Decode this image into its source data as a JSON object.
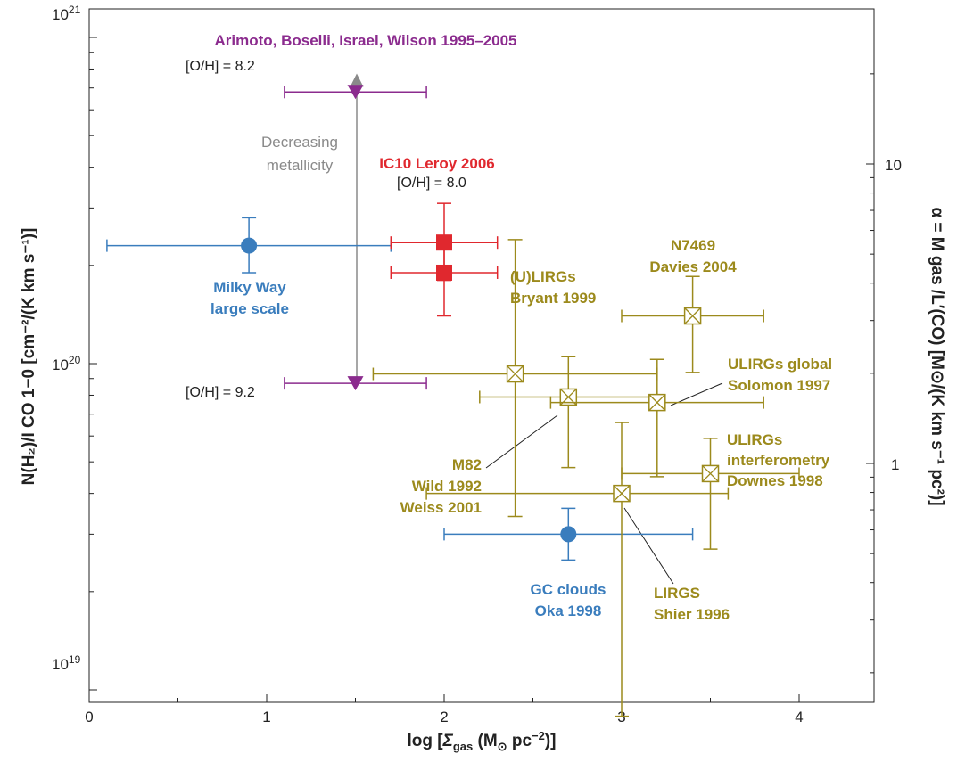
{
  "colors": {
    "milky": "#3a7dbd",
    "ic10": "#e0282e",
    "arimoto": "#8b2b8e",
    "lirg": "#9c8a1c",
    "arrow": "#8a8a8a",
    "axis": "#222222"
  },
  "axes": {
    "xlabel_main": "log [",
    "xlabel_sigma": "Σ",
    "xlabel_sub": "gas",
    "xlabel_unit": " (M",
    "xlabel_sun": "⊙",
    "xlabel_pc": " pc",
    "xlabel_exp": "−2",
    "xlabel_close": ")]",
    "ylabel_left": "N(H₂)/I CO 1−0 [cm⁻²/(K km s⁻¹)]",
    "ylabel_right": "α = M gas /L′(CO) [M⊙/(K km s⁻¹ pc²)]",
    "x_ticks": [
      "0",
      "1",
      "2",
      "3",
      "4"
    ],
    "left_ticks": [
      {
        "base": "10",
        "exp": "21",
        "value": 1e+21
      },
      {
        "base": "10",
        "exp": "20",
        "value": 1e+20
      },
      {
        "base": "10",
        "exp": "19",
        "value": 1e+19
      }
    ],
    "right_ticks": [
      {
        "label": "10",
        "value": 10
      },
      {
        "label": "1",
        "value": 1
      }
    ]
  },
  "annotations": {
    "arimoto_title": "Arimoto, Boselli, Israel, Wilson 1995–2005",
    "oh_82": "[O/H] = 8.2",
    "oh_92": "[O/H] = 9.2",
    "oh_80": "[O/H] = 8.0",
    "decreasing_1": "Decreasing",
    "decreasing_2": "metallicity",
    "ic10": "IC10 Leroy 2006",
    "milky_1": "Milky Way",
    "milky_2": "large scale",
    "gc_1": "GC clouds",
    "gc_2": "Oka 1998",
    "ulirg_b_1": "(U)LIRGs",
    "ulirg_b_2": "Bryant 1999",
    "n7469_1": "N7469",
    "n7469_2": "Davies 2004",
    "ulirg_g_1": "ULIRGs global",
    "ulirg_g_2": "Solomon 1997",
    "ulirg_i_1": "ULIRGs",
    "ulirg_i_2": "interferometry",
    "ulirg_i_3": "Downes 1998",
    "m82_1": "M82",
    "m82_2": "Wild 1992",
    "m82_3": "Weiss 2001",
    "lirgs_1": "LIRGS",
    "lirgs_2": "Shier 1996"
  },
  "chart_data": {
    "type": "scatter",
    "x_scale": "linear",
    "y_scale": "log",
    "xlim": [
      0,
      4.5
    ],
    "ylim_left": [
      8.3e+18,
      1e+21
    ],
    "ylim_right": [
      0.19,
      22
    ],
    "grid": false,
    "points": [
      {
        "id": "milky-way",
        "series": "Milky Way large scale",
        "color": "milky",
        "marker": "circle",
        "x": 0.9,
        "y": 2.3e+20,
        "xerr": [
          0.1,
          1.7
        ],
        "yerr": [
          1.9e+20,
          2.8e+20
        ]
      },
      {
        "id": "gc-clouds",
        "series": "GC clouds Oka 1998",
        "color": "milky",
        "marker": "circle",
        "x": 2.7,
        "y": 3e+19,
        "xerr": [
          2.0,
          3.4
        ],
        "yerr": [
          2.5e+19,
          3.6e+19
        ]
      },
      {
        "id": "ic10-a",
        "series": "IC10 Leroy 2006",
        "color": "ic10",
        "marker": "square",
        "x": 2.0,
        "y": 2.35e+20,
        "xerr": [
          1.7,
          2.3
        ],
        "yerr": [
          1.8e+20,
          3.1e+20
        ]
      },
      {
        "id": "ic10-b",
        "series": "IC10 Leroy 2006",
        "color": "ic10",
        "marker": "square",
        "x": 2.0,
        "y": 1.9e+20,
        "xerr": [
          1.7,
          2.3
        ],
        "yerr": [
          1.4e+20,
          2.4e+20
        ]
      },
      {
        "id": "arimoto-82",
        "series": "Arimoto, Boselli, Israel, Wilson 1995–2005",
        "color": "arimoto",
        "marker": "triangle-down",
        "x": 1.5,
        "y": 6.8e+20,
        "xerr": [
          1.1,
          1.9
        ],
        "yerr": null
      },
      {
        "id": "arimoto-92",
        "series": "Arimoto, Boselli, Israel, Wilson 1995–2005",
        "color": "arimoto",
        "marker": "triangle-down",
        "x": 1.5,
        "y": 8.7e+19,
        "xerr": [
          1.1,
          1.9
        ],
        "yerr": null
      },
      {
        "id": "ulirg-bryant",
        "series": "(U)LIRGs Bryant 1999",
        "color": "lirg",
        "marker": "boxed-x",
        "x": 2.4,
        "y": 9.3e+19,
        "xerr": [
          1.6,
          3.2
        ],
        "yerr": [
          3.4e+19,
          2.4e+20
        ]
      },
      {
        "id": "m82",
        "series": "M82 Wild 1992 Weiss 2001",
        "color": "lirg",
        "marker": "boxed-x",
        "x": 2.7,
        "y": 7.9e+19,
        "xerr": [
          2.2,
          3.2
        ],
        "yerr": [
          4.8e+19,
          1.05e+20
        ]
      },
      {
        "id": "ulirg-solomon",
        "series": "ULIRGs global Solomon 1997",
        "color": "lirg",
        "marker": "boxed-x",
        "x": 3.2,
        "y": 7.6e+19,
        "xerr": [
          2.6,
          3.8
        ],
        "yerr": [
          4.5e+19,
          1.03e+20
        ]
      },
      {
        "id": "n7469",
        "series": "N7469 Davies 2004",
        "color": "lirg",
        "marker": "boxed-x",
        "x": 3.4,
        "y": 1.4e+20,
        "xerr": [
          3.0,
          3.8
        ],
        "yerr": [
          9.4e+19,
          1.85e+20
        ]
      },
      {
        "id": "ulirg-downes",
        "series": "ULIRGs interferometry Downes 1998",
        "color": "lirg",
        "marker": "boxed-x",
        "x": 3.5,
        "y": 4.6e+19,
        "xerr": [
          3.0,
          4.0
        ],
        "yerr": [
          2.7e+19,
          5.9e+19
        ]
      },
      {
        "id": "lirgs-shier",
        "series": "LIRGS Shier 1996",
        "color": "lirg",
        "marker": "boxed-x",
        "x": 3.0,
        "y": 4e+19,
        "xerr": [
          1.9,
          3.6
        ],
        "yerr": [
          8.3e+18,
          6.6e+19
        ]
      }
    ]
  }
}
